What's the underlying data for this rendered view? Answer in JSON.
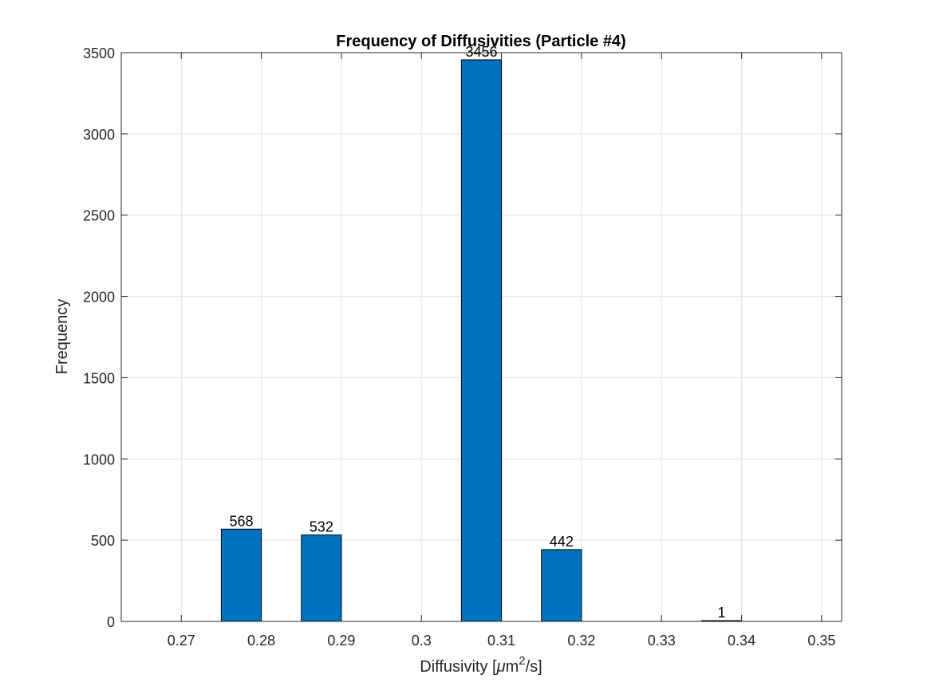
{
  "chart_data": {
    "type": "bar",
    "title": "Frequency of Diffusivities (Particle #4)",
    "xlabel_prefix": "Diffusivity [",
    "xlabel_mu": "μ",
    "xlabel_unit": "m",
    "xlabel_sup": "2",
    "xlabel_suffix": "/s]",
    "ylabel": "Frequency",
    "xlim": [
      0.2625,
      0.3525
    ],
    "ylim": [
      0,
      3500
    ],
    "x_ticks": [
      0.27,
      0.28,
      0.29,
      0.3,
      0.31,
      0.32,
      0.33,
      0.34,
      0.35
    ],
    "x_tick_labels": [
      "0.27",
      "0.28",
      "0.29",
      "0.3",
      "0.31",
      "0.32",
      "0.33",
      "0.34",
      "0.35"
    ],
    "y_ticks": [
      0,
      500,
      1000,
      1500,
      2000,
      2500,
      3000,
      3500
    ],
    "y_tick_labels": [
      "0",
      "500",
      "1000",
      "1500",
      "2000",
      "2500",
      "3000",
      "3500"
    ],
    "bar_width": 0.005,
    "x": [
      0.2775,
      0.2875,
      0.3075,
      0.3175,
      0.3375
    ],
    "values": [
      568,
      532,
      3456,
      442,
      1
    ],
    "data_labels": [
      "568",
      "532",
      "3456",
      "442",
      "1"
    ],
    "grid": true,
    "colors": {
      "bar_fill": "#0072BD",
      "bar_edge": "#000000",
      "grid": "#e2e2e2",
      "axis": "#262626"
    }
  }
}
